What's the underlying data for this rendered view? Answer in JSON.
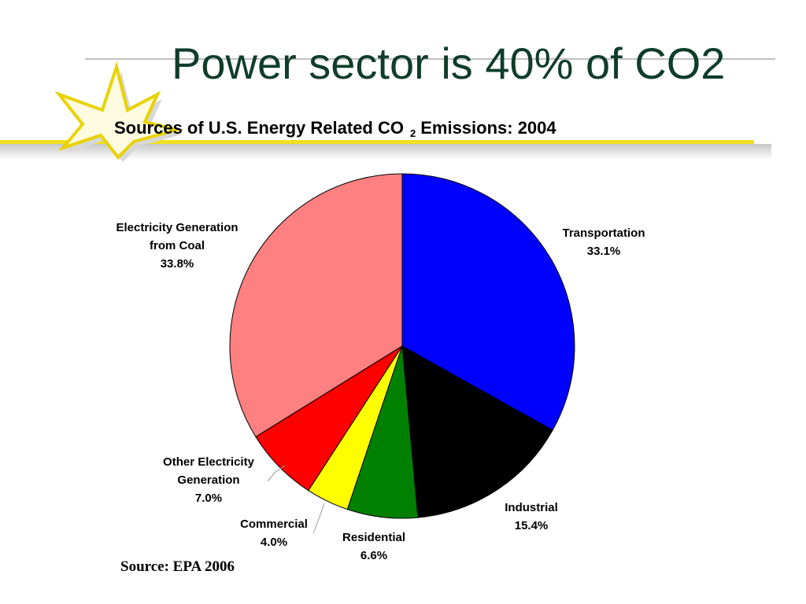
{
  "slide": {
    "title": "Power sector is 40% of CO2",
    "source": "Source: EPA 2006"
  },
  "chart_data": {
    "type": "pie",
    "title": "Sources of U.S. Energy Related CO",
    "title_subscript": "2",
    "title_suffix": "Emissions: 2004",
    "slices": [
      {
        "label_lines": [
          "Transportation"
        ],
        "value_label": "33.1%",
        "value": 33.1,
        "color": "#0000ff"
      },
      {
        "label_lines": [
          "Industrial"
        ],
        "value_label": "15.4%",
        "value": 15.4,
        "color": "#000000"
      },
      {
        "label_lines": [
          "Residential"
        ],
        "value_label": "6.6%",
        "value": 6.6,
        "color": "#008000"
      },
      {
        "label_lines": [
          "Commercial"
        ],
        "value_label": "4.0%",
        "value": 4.0,
        "color": "#ffff00"
      },
      {
        "label_lines": [
          "Other Electricity",
          "Generation"
        ],
        "value_label": "7.0%",
        "value": 7.0,
        "color": "#ff0000"
      },
      {
        "label_lines": [
          "Electricity Generation",
          "from Coal"
        ],
        "value_label": "33.8%",
        "value": 33.8,
        "color": "#ff8080"
      }
    ]
  }
}
